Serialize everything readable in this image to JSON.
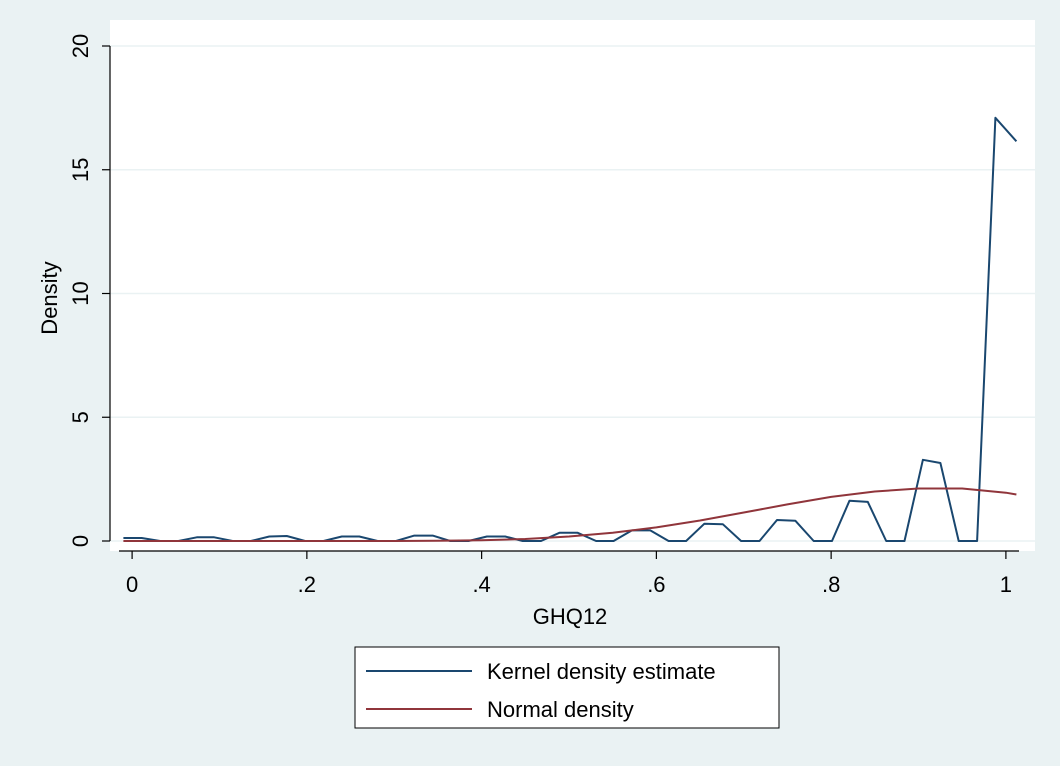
{
  "chart_data": {
    "type": "line",
    "title": "",
    "xlabel": "GHQ12",
    "ylabel": "Density",
    "xlim": [
      -0.015,
      1.015
    ],
    "ylim": [
      0,
      20
    ],
    "x_ticks": [
      0,
      0.2,
      0.4,
      0.6,
      0.8,
      1
    ],
    "x_tick_labels": [
      "0",
      ".2",
      ".4",
      ".6",
      ".8",
      "1"
    ],
    "y_ticks": [
      0,
      5,
      10,
      15,
      20
    ],
    "y_tick_labels": [
      "0",
      "5",
      "10",
      "15",
      "20"
    ],
    "grid": true,
    "legend_position": "bottom-center",
    "series": [
      {
        "name": "Kernel density estimate",
        "color": "#1a476f",
        "x": [
          -0.01,
          0.011,
          0.032,
          0.053,
          0.074,
          0.094,
          0.115,
          0.136,
          0.157,
          0.177,
          0.198,
          0.219,
          0.24,
          0.26,
          0.281,
          0.302,
          0.323,
          0.344,
          0.364,
          0.385,
          0.406,
          0.427,
          0.447,
          0.468,
          0.489,
          0.51,
          0.531,
          0.551,
          0.572,
          0.593,
          0.614,
          0.634,
          0.655,
          0.676,
          0.697,
          0.718,
          0.738,
          0.759,
          0.78,
          0.801,
          0.821,
          0.842,
          0.863,
          0.884,
          0.905,
          0.925,
          0.946,
          0.967,
          0.988,
          1.012
        ],
        "y": [
          0.12,
          0.12,
          0,
          0,
          0.15,
          0.15,
          0,
          0,
          0.18,
          0.2,
          0,
          0,
          0.18,
          0.18,
          0,
          0,
          0.22,
          0.22,
          0,
          0,
          0.18,
          0.18,
          0,
          0,
          0.33,
          0.33,
          0,
          0,
          0.43,
          0.43,
          0,
          0,
          0.7,
          0.68,
          0,
          0,
          0.85,
          0.82,
          0,
          0,
          1.63,
          1.58,
          0,
          0,
          3.28,
          3.15,
          0,
          0,
          17.1,
          16.15
        ]
      },
      {
        "name": "Normal density",
        "color": "#90353b",
        "x": [
          -0.01,
          0.1,
          0.2,
          0.3,
          0.35,
          0.4,
          0.45,
          0.5,
          0.55,
          0.6,
          0.65,
          0.7,
          0.75,
          0.8,
          0.85,
          0.9,
          0.95,
          1.0,
          1.012
        ],
        "y": [
          0,
          0,
          0,
          0,
          0.01,
          0.03,
          0.08,
          0.18,
          0.33,
          0.55,
          0.83,
          1.15,
          1.48,
          1.78,
          2.0,
          2.12,
          2.12,
          1.95,
          1.88
        ]
      }
    ]
  }
}
